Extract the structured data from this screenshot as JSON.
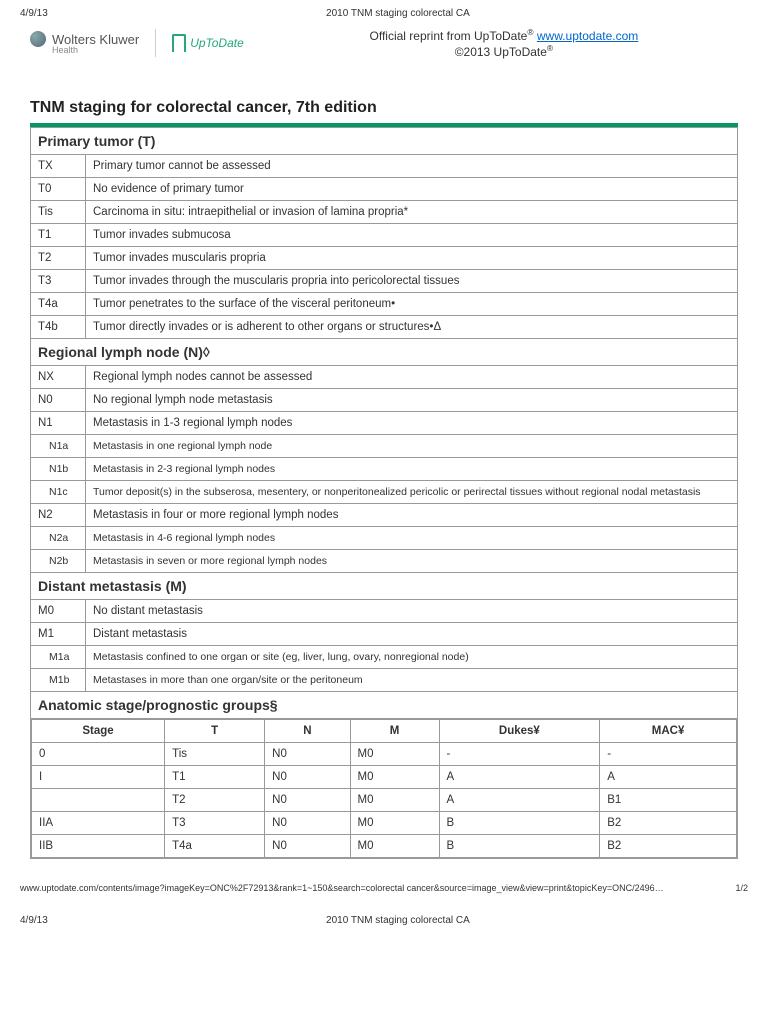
{
  "header": {
    "date": "4/9/13",
    "doc_title": "2010 TNM staging colorectal CA"
  },
  "brand": {
    "wk_name": "Wolters Kluwer",
    "wk_sub": "Health",
    "utd_name": "UpToDate",
    "reprint_prefix": "Official reprint from UpToDate",
    "reprint_url": "www.uptodate.com",
    "copyright": "©2013 UpToDate"
  },
  "title": "TNM staging for colorectal cancer, 7th edition",
  "sections": [
    {
      "heading": "Primary tumor (T)",
      "rows": [
        {
          "code": "TX",
          "desc": "Primary tumor cannot be assessed"
        },
        {
          "code": "T0",
          "desc": "No evidence of primary tumor"
        },
        {
          "code": "Tis",
          "desc": "Carcinoma in situ: intraepithelial or invasion of lamina propria*"
        },
        {
          "code": "T1",
          "desc": "Tumor invades submucosa"
        },
        {
          "code": "T2",
          "desc": "Tumor invades muscularis propria"
        },
        {
          "code": "T3",
          "desc": "Tumor invades through the muscularis propria into pericolorectal tissues"
        },
        {
          "code": "T4a",
          "desc": "Tumor penetrates to the surface of the visceral peritoneum•"
        },
        {
          "code": "T4b",
          "desc": "Tumor directly invades or is adherent to other organs or structures•Δ"
        }
      ]
    },
    {
      "heading": "Regional lymph node (N)◊",
      "rows": [
        {
          "code": "NX",
          "desc": "Regional lymph nodes cannot be assessed"
        },
        {
          "code": "N0",
          "desc": "No regional lymph node metastasis"
        },
        {
          "code": "N1",
          "desc": "Metastasis in 1-3 regional lymph nodes"
        },
        {
          "code": "N1a",
          "desc": "Metastasis in one regional lymph node",
          "sub": true
        },
        {
          "code": "N1b",
          "desc": "Metastasis in 2-3 regional lymph nodes",
          "sub": true
        },
        {
          "code": "N1c",
          "desc": "Tumor deposit(s) in the subserosa, mesentery, or nonperitonealized pericolic or perirectal tissues without regional nodal metastasis",
          "sub": true
        },
        {
          "code": "N2",
          "desc": "Metastasis in four or more regional lymph nodes"
        },
        {
          "code": "N2a",
          "desc": "Metastasis in 4-6 regional lymph nodes",
          "sub": true
        },
        {
          "code": "N2b",
          "desc": "Metastasis in seven or more regional lymph nodes",
          "sub": true
        }
      ]
    },
    {
      "heading": "Distant metastasis (M)",
      "rows": [
        {
          "code": "M0",
          "desc": "No distant metastasis"
        },
        {
          "code": "M1",
          "desc": "Distant metastasis"
        },
        {
          "code": "M1a",
          "desc": "Metastasis confined to one organ or site (eg, liver, lung, ovary, nonregional node)",
          "sub": true
        },
        {
          "code": "M1b",
          "desc": "Metastases in more than one organ/site or the peritoneum",
          "sub": true
        }
      ]
    }
  ],
  "stage_section": {
    "heading": "Anatomic stage/prognostic groups§",
    "columns": [
      "Stage",
      "T",
      "N",
      "M",
      "Dukes¥",
      "MAC¥"
    ],
    "rows": [
      [
        "0",
        "Tis",
        "N0",
        "M0",
        "-",
        "-"
      ],
      [
        "I",
        "T1",
        "N0",
        "M0",
        "A",
        "A"
      ],
      [
        "",
        "T2",
        "N0",
        "M0",
        "A",
        "B1"
      ],
      [
        "IIA",
        "T3",
        "N0",
        "M0",
        "B",
        "B2"
      ],
      [
        "IIB",
        "T4a",
        "N0",
        "M0",
        "B",
        "B2"
      ]
    ]
  },
  "footer": {
    "url": "www.uptodate.com/contents/image?imageKey=ONC%2F72913&rank=1~150&search=colorectal cancer&source=image_view&view=print&topicKey=ONC/2496…",
    "page": "1/2"
  },
  "colors": {
    "accent": "#009966",
    "border": "#999999",
    "link": "#0066cc"
  }
}
